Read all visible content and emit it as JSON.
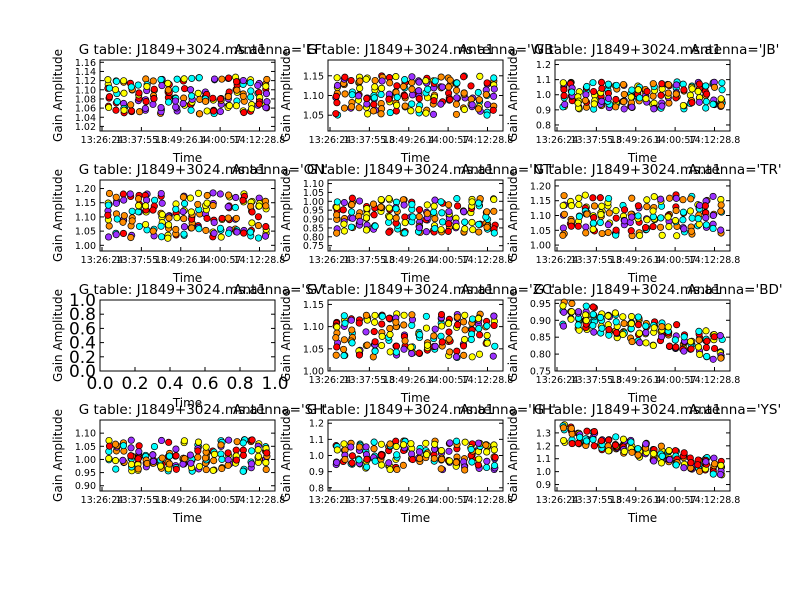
{
  "figure": {
    "background": "#ffffff"
  },
  "chart_data": [
    {
      "type": "scatter",
      "title": "G table: J1849+3024.ms.a1",
      "antenna": "Antenna='EF'",
      "xlabel": "Time",
      "ylabel": "Gain Amplitude",
      "x_ticks": [
        "13:26:24",
        "13:37:55.8",
        "13:49:26.4",
        "14:00:57",
        "14:12:28.8"
      ],
      "y_ticks": [
        "1.02",
        "1.04",
        "1.06",
        "1.08",
        "1.10",
        "1.12",
        "1.14",
        "1.16"
      ],
      "ylim": [
        1.01,
        1.165
      ],
      "has_data": true,
      "trend": "flat",
      "spread": 0.04,
      "colors": [
        "#00ffff",
        "#ffff00",
        "#ff8c00",
        "#ff0000",
        "#9b30ff"
      ]
    },
    {
      "type": "scatter",
      "title": "G table: J1849+3024.ms.a1",
      "antenna": "Antenna='WB'",
      "xlabel": "Time",
      "ylabel": "Gain Amplitude",
      "x_ticks": [
        "13:26:24",
        "13:37:55.8",
        "13:49:26.4",
        "14:00:57",
        "14:12:28.8"
      ],
      "y_ticks": [
        "1.05",
        "1.10",
        "1.15"
      ],
      "ylim": [
        1.01,
        1.19
      ],
      "has_data": true,
      "trend": "flat",
      "spread": 0.05,
      "colors": [
        "#00ffff",
        "#ffff00",
        "#ff8c00",
        "#ff0000",
        "#9b30ff"
      ]
    },
    {
      "type": "scatter",
      "title": "G table: J1849+3024.ms.a1",
      "antenna": "Antenna='JB'",
      "xlabel": "Time",
      "ylabel": "Gain Amplitude",
      "x_ticks": [
        "13:26:24",
        "13:37:55.8",
        "13:49:26.4",
        "14:00:57",
        "14:12:28.8"
      ],
      "y_ticks": [
        "0.8",
        "0.9",
        "1.0",
        "1.1",
        "1.2"
      ],
      "ylim": [
        0.76,
        1.23
      ],
      "has_data": true,
      "trend": "flat",
      "spread": 0.09,
      "colors": [
        "#00ffff",
        "#ffff00",
        "#ff8c00",
        "#ff0000",
        "#9b30ff"
      ]
    },
    {
      "type": "scatter",
      "title": "G table: J1849+3024.ms.a1",
      "antenna": "Antenna='ON'",
      "xlabel": "Time",
      "ylabel": "Gain Amplitude",
      "x_ticks": [
        "13:26:24",
        "13:37:55.8",
        "13:49:26.4",
        "14:00:57",
        "14:12:28.8"
      ],
      "y_ticks": [
        "1.00",
        "1.05",
        "1.10",
        "1.15",
        "1.20"
      ],
      "ylim": [
        0.98,
        1.23
      ],
      "has_data": true,
      "trend": "flat",
      "spread": 0.08,
      "colors": [
        "#00ffff",
        "#ffff00",
        "#ff8c00",
        "#ff0000",
        "#9b30ff"
      ]
    },
    {
      "type": "scatter",
      "title": "G table: J1849+3024.ms.a1",
      "antenna": "Antenna='NT'",
      "xlabel": "Time",
      "ylabel": "Gain Amplitude",
      "x_ticks": [
        "13:26:24",
        "13:37:55.8",
        "13:49:26.4",
        "14:00:57",
        "14:12:28.8"
      ],
      "y_ticks": [
        "0.75",
        "0.80",
        "0.85",
        "0.90",
        "0.95",
        "1.00",
        "1.05",
        "1.10"
      ],
      "ylim": [
        0.72,
        1.12
      ],
      "has_data": true,
      "trend": "flat",
      "spread": 0.1,
      "colors": [
        "#00ffff",
        "#ffff00",
        "#ff8c00",
        "#ff0000",
        "#9b30ff"
      ]
    },
    {
      "type": "scatter",
      "title": "G table: J1849+3024.ms.a1",
      "antenna": "Antenna='TR'",
      "xlabel": "Time",
      "ylabel": "Gain Amplitude",
      "x_ticks": [
        "13:26:24",
        "13:37:55.8",
        "13:49:26.4",
        "14:00:57",
        "14:12:28.8"
      ],
      "y_ticks": [
        "1.00",
        "1.05",
        "1.10",
        "1.15",
        "1.20"
      ],
      "ylim": [
        0.98,
        1.22
      ],
      "has_data": true,
      "trend": "flat",
      "spread": 0.07,
      "colors": [
        "#00ffff",
        "#ffff00",
        "#ff8c00",
        "#ff0000",
        "#9b30ff"
      ]
    },
    {
      "type": "scatter",
      "title": "G table: J1849+3024.ms.a1",
      "antenna": "Antenna='SV'",
      "xlabel": "Time",
      "ylabel": "Gain Amplitude",
      "x_ticks": [
        "0.0",
        "0.2",
        "0.4",
        "0.6",
        "0.8",
        "1.0"
      ],
      "y_ticks": [
        "0.0",
        "0.2",
        "0.4",
        "0.6",
        "0.8",
        "1.0"
      ],
      "ylim": [
        0,
        1
      ],
      "has_data": false,
      "colors": []
    },
    {
      "type": "scatter",
      "title": "G table: J1849+3024.ms.a1",
      "antenna": "Antenna='ZC'",
      "xlabel": "Time",
      "ylabel": "Gain Amplitude",
      "x_ticks": [
        "13:26:24",
        "13:37:55.8",
        "13:49:26.4",
        "14:00:57",
        "14:12:28.8"
      ],
      "y_ticks": [
        "1.00",
        "1.05",
        "1.10",
        "1.15"
      ],
      "ylim": [
        1.0,
        1.16
      ],
      "has_data": true,
      "trend": "flat",
      "spread": 0.05,
      "colors": [
        "#00ffff",
        "#ffff00",
        "#ff8c00",
        "#ff0000",
        "#9b30ff"
      ]
    },
    {
      "type": "scatter",
      "title": "G table: J1849+3024.ms.a1",
      "antenna": "Antenna='BD'",
      "xlabel": "Time",
      "ylabel": "Gain Amplitude",
      "x_ticks": [
        "13:26:24",
        "13:37:55.8",
        "13:49:26.4",
        "14:00:57",
        "14:12:28.8"
      ],
      "y_ticks": [
        "0.75",
        "0.80",
        "0.85",
        "0.90",
        "0.95"
      ],
      "ylim": [
        0.75,
        0.96
      ],
      "has_data": true,
      "trend": "down",
      "spread": 0.04,
      "colors": [
        "#00ffff",
        "#ffff00",
        "#ff8c00",
        "#ff0000",
        "#9b30ff"
      ]
    },
    {
      "type": "scatter",
      "title": "G table: J1849+3024.ms.a1",
      "antenna": "Antenna='SH'",
      "xlabel": "Time",
      "ylabel": "Gain Amplitude",
      "x_ticks": [
        "13:26:24",
        "13:37:55.8",
        "13:49:26.4",
        "14:00:57",
        "14:12:28.8"
      ],
      "y_ticks": [
        "0.90",
        "0.95",
        "1.00",
        "1.05",
        "1.10"
      ],
      "ylim": [
        0.88,
        1.15
      ],
      "has_data": true,
      "trend": "flat",
      "spread": 0.06,
      "colors": [
        "#00ffff",
        "#ffff00",
        "#ff8c00",
        "#ff0000",
        "#9b30ff"
      ]
    },
    {
      "type": "scatter",
      "title": "G table: J1849+3024.ms.a1",
      "antenna": "Antenna='HH'",
      "xlabel": "Time",
      "ylabel": "Gain Amplitude",
      "x_ticks": [
        "13:26:24",
        "13:37:55.8",
        "13:49:26.4",
        "14:00:57",
        "14:12:28.8"
      ],
      "y_ticks": [
        "0.8",
        "0.9",
        "1.0",
        "1.1",
        "1.2"
      ],
      "ylim": [
        0.78,
        1.22
      ],
      "has_data": true,
      "trend": "flat",
      "spread": 0.09,
      "colors": [
        "#00ffff",
        "#ffff00",
        "#ff8c00",
        "#ff0000",
        "#9b30ff"
      ]
    },
    {
      "type": "scatter",
      "title": "G table: J1849+3024.ms.a1",
      "antenna": "Antenna='YS'",
      "xlabel": "Time",
      "ylabel": "Gain Amplitude",
      "x_ticks": [
        "13:26:24",
        "13:37:55.8",
        "13:49:26.4",
        "14:00:57",
        "14:12:28.8"
      ],
      "y_ticks": [
        "0.9",
        "1.0",
        "1.1",
        "1.2",
        "1.3"
      ],
      "ylim": [
        0.85,
        1.4
      ],
      "has_data": true,
      "trend": "down",
      "spread": 0.07,
      "colors": [
        "#00ffff",
        "#ffff00",
        "#ff8c00",
        "#ff0000",
        "#9b30ff"
      ]
    }
  ]
}
